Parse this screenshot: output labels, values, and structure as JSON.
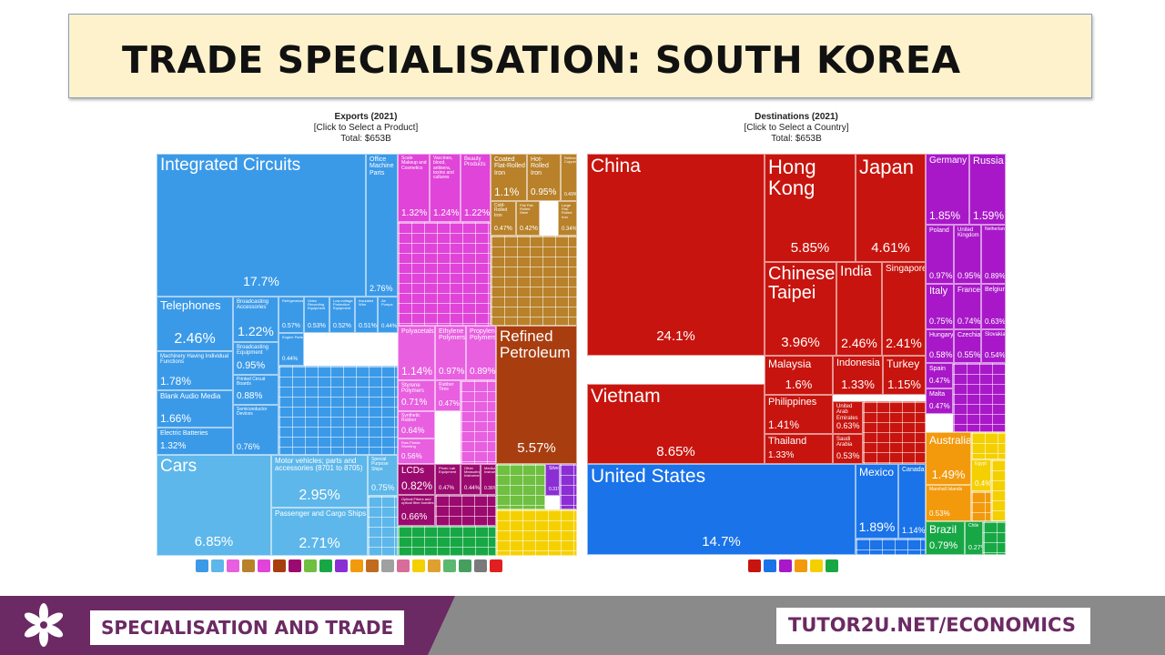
{
  "slide": {
    "title": "TRADE SPECIALISATION: SOUTH KOREA",
    "footer_left": "SPECIALISATION AND TRADE",
    "footer_right": "TUTOR2U.NET/ECONOMICS"
  },
  "chart_data": [
    {
      "type": "treemap",
      "title": "Exports (2021)",
      "subtitle": "[Click to Select a Product]",
      "total": "Total: $653B",
      "items": [
        {
          "name": "Integrated Circuits",
          "value": 17.7,
          "value_label": "17.7%",
          "color": "#3b9ae8"
        },
        {
          "name": "Office Machine Parts",
          "value": 2.76,
          "value_label": "2.76%",
          "color": "#3b9ae8"
        },
        {
          "name": "Telephones",
          "value": 2.46,
          "value_label": "2.46%",
          "color": "#3b9ae8"
        },
        {
          "name": "Broadcasting Accessories",
          "value": 1.22,
          "value_label": "1.22%",
          "color": "#3b9ae8"
        },
        {
          "name": "Machinery Having Individual Functions",
          "value": 1.78,
          "value_label": "1.78%",
          "color": "#3b9ae8"
        },
        {
          "name": "Broadcasting Equipment",
          "value": 0.95,
          "value_label": "0.95%",
          "color": "#3b9ae8"
        },
        {
          "name": "Blank Audio Media",
          "value": 1.66,
          "value_label": "1.66%",
          "color": "#3b9ae8"
        },
        {
          "name": "Printed Circuit Boards",
          "value": 0.88,
          "value_label": "0.88%",
          "color": "#3b9ae8"
        },
        {
          "name": "Electric Batteries",
          "value": 1.32,
          "value_label": "1.32%",
          "color": "#3b9ae8"
        },
        {
          "name": "Semiconductor Devices",
          "value": 0.76,
          "value_label": "0.76%",
          "color": "#3b9ae8"
        },
        {
          "name": "Refrigerators",
          "value": 0.57,
          "value_label": "0.57%",
          "color": "#3b9ae8"
        },
        {
          "name": "Video Recording Equipment",
          "value": 0.53,
          "value_label": "0.53%",
          "color": "#3b9ae8"
        },
        {
          "name": "Low-voltage Protection Equipment",
          "value": 0.52,
          "value_label": "0.52%",
          "color": "#3b9ae8"
        },
        {
          "name": "Insulated Wire",
          "value": 0.51,
          "value_label": "0.51%",
          "color": "#3b9ae8"
        },
        {
          "name": "Air Pumps",
          "value": 0.44,
          "value_label": "0.44%",
          "color": "#3b9ae8"
        },
        {
          "name": "Engine Parts",
          "value": 0.44,
          "value_label": "0.44%",
          "color": "#3b9ae8"
        },
        {
          "name": "Cars",
          "value": 6.85,
          "value_label": "6.85%",
          "color": "#5db7ea"
        },
        {
          "name": "Motor vehicles; parts and accessories (8701 to 8705)",
          "value": 2.95,
          "value_label": "2.95%",
          "color": "#5db7ea"
        },
        {
          "name": "Passenger and Cargo Ships",
          "value": 2.71,
          "value_label": "2.71%",
          "color": "#5db7ea"
        },
        {
          "name": "Special Purpose Ships",
          "value": 0.75,
          "value_label": "0.75%",
          "color": "#5db7ea"
        },
        {
          "name": "Coated Flat-Rolled Iron",
          "value": 1.1,
          "value_label": "1.1%",
          "color": "#b8812a"
        },
        {
          "name": "Hot-Rolled Iron",
          "value": 0.95,
          "value_label": "0.95%",
          "color": "#b8812a"
        },
        {
          "name": "Refined Copper",
          "value": 0.49,
          "value_label": "0.49%",
          "color": "#b8812a"
        },
        {
          "name": "Cold-Rolled Iron",
          "value": 0.47,
          "value_label": "0.47%",
          "color": "#b8812a"
        },
        {
          "name": "Flat Flat-Rolled Steel",
          "value": 0.42,
          "value_label": "0.42%",
          "color": "#b8812a"
        },
        {
          "name": "Large Flat-Rolled Iron",
          "value": 0.34,
          "value_label": "0.34%",
          "color": "#b8812a"
        },
        {
          "name": "Refined Petroleum",
          "value": 5.57,
          "value_label": "5.57%",
          "color": "#a83e10"
        },
        {
          "name": "Polyacetals",
          "value": 1.14,
          "value_label": "1.14%",
          "color": "#e85fe0"
        },
        {
          "name": "Ethylene Polymers",
          "value": 0.97,
          "value_label": "0.97%",
          "color": "#e85fe0"
        },
        {
          "name": "Propylene Polymers",
          "value": 0.89,
          "value_label": "0.89%",
          "color": "#e85fe0"
        },
        {
          "name": "Styrene Polymers",
          "value": 0.71,
          "value_label": "0.71%",
          "color": "#e85fe0"
        },
        {
          "name": "Rubber Tires",
          "value": 0.47,
          "value_label": "0.47%",
          "color": "#e85fe0"
        },
        {
          "name": "Synthetic Rubber",
          "value": 0.64,
          "value_label": "0.64%",
          "color": "#e85fe0"
        },
        {
          "name": "Raw Plastic Sheeting",
          "value": 0.56,
          "value_label": "0.56%",
          "color": "#e85fe0"
        },
        {
          "name": "Scale Makeup and Cosmetics",
          "value": 1.32,
          "value_label": "1.32%",
          "color": "#e044d8"
        },
        {
          "name": "Vaccines, blood, antisera, toxins and cultures",
          "value": 1.24,
          "value_label": "1.24%",
          "color": "#e044d8"
        },
        {
          "name": "Beauty Products",
          "value": 1.22,
          "value_label": "1.22%",
          "color": "#e044d8"
        },
        {
          "name": "LCDs",
          "value": 0.82,
          "value_label": "0.82%",
          "color": "#9b0a6e"
        },
        {
          "name": "Optical Fibers and optical fibre bundles",
          "value": 0.66,
          "value_label": "0.66%",
          "color": "#9b0a6e"
        },
        {
          "name": "Photo Lab Equipment",
          "value": 0.47,
          "value_label": "0.47%",
          "color": "#9b0a6e"
        },
        {
          "name": "Other Measuring Instruments",
          "value": 0.44,
          "value_label": "0.44%",
          "color": "#9b0a6e"
        },
        {
          "name": "Medical Instruments",
          "value": 0.36,
          "value_label": "0.36%",
          "color": "#9b0a6e"
        },
        {
          "name": "Silver",
          "value": 0.31,
          "value_label": "0.31%",
          "color": "#8b2fd4"
        }
      ]
    },
    {
      "type": "treemap",
      "title": "Destinations (2021)",
      "subtitle": "[Click to Select a Country]",
      "total": "Total: $653B",
      "items": [
        {
          "name": "China",
          "value": 24.1,
          "value_label": "24.1%",
          "color": "#c8140e"
        },
        {
          "name": "Vietnam",
          "value": 8.65,
          "value_label": "8.65%",
          "color": "#c8140e"
        },
        {
          "name": "Hong Kong",
          "value": 5.85,
          "value_label": "5.85%",
          "color": "#c8140e"
        },
        {
          "name": "Japan",
          "value": 4.61,
          "value_label": "4.61%",
          "color": "#c8140e"
        },
        {
          "name": "Chinese Taipei",
          "value": 3.96,
          "value_label": "3.96%",
          "color": "#c8140e"
        },
        {
          "name": "India",
          "value": 2.46,
          "value_label": "2.46%",
          "color": "#c8140e"
        },
        {
          "name": "Singapore",
          "value": 2.41,
          "value_label": "2.41%",
          "color": "#c8140e"
        },
        {
          "name": "Malaysia",
          "value": 1.6,
          "value_label": "1.6%",
          "color": "#c8140e"
        },
        {
          "name": "Indonesia",
          "value": 1.33,
          "value_label": "1.33%",
          "color": "#c8140e"
        },
        {
          "name": "Turkey",
          "value": 1.15,
          "value_label": "1.15%",
          "color": "#c8140e"
        },
        {
          "name": "Philippines",
          "value": 1.41,
          "value_label": "1.41%",
          "color": "#c8140e"
        },
        {
          "name": "United Arab Emirates",
          "value": 0.63,
          "value_label": "0.63%",
          "color": "#c8140e"
        },
        {
          "name": "Thailand",
          "value": 1.33,
          "value_label": "1.33%",
          "color": "#c8140e"
        },
        {
          "name": "Saudi Arabia",
          "value": 0.53,
          "value_label": "0.53%",
          "color": "#c8140e"
        },
        {
          "name": "United States",
          "value": 14.7,
          "value_label": "14.7%",
          "color": "#1a73e8"
        },
        {
          "name": "Mexico",
          "value": 1.89,
          "value_label": "1.89%",
          "color": "#1a73e8"
        },
        {
          "name": "Canada",
          "value": 1.14,
          "value_label": "1.14%",
          "color": "#1a73e8"
        },
        {
          "name": "Germany",
          "value": 1.85,
          "value_label": "1.85%",
          "color": "#a818c8"
        },
        {
          "name": "Russia",
          "value": 1.59,
          "value_label": "1.59%",
          "color": "#a818c8"
        },
        {
          "name": "Poland",
          "value": 0.97,
          "value_label": "0.97%",
          "color": "#a818c8"
        },
        {
          "name": "United Kingdom",
          "value": 0.95,
          "value_label": "0.95%",
          "color": "#a818c8"
        },
        {
          "name": "Netherlands",
          "value": 0.89,
          "value_label": "0.89%",
          "color": "#a818c8"
        },
        {
          "name": "Italy",
          "value": 0.75,
          "value_label": "0.75%",
          "color": "#a818c8"
        },
        {
          "name": "France",
          "value": 0.74,
          "value_label": "0.74%",
          "color": "#a818c8"
        },
        {
          "name": "Belgium",
          "value": 0.63,
          "value_label": "0.63%",
          "color": "#a818c8"
        },
        {
          "name": "Hungary",
          "value": 0.58,
          "value_label": "0.58%",
          "color": "#a818c8"
        },
        {
          "name": "Czechia",
          "value": 0.55,
          "value_label": "0.55%",
          "color": "#a818c8"
        },
        {
          "name": "Slovakia",
          "value": 0.54,
          "value_label": "0.54%",
          "color": "#a818c8"
        },
        {
          "name": "Spain",
          "value": 0.47,
          "value_label": "0.47%",
          "color": "#a818c8"
        },
        {
          "name": "Malta",
          "value": 0.47,
          "value_label": "0.47%",
          "color": "#a818c8"
        },
        {
          "name": "Australia",
          "value": 1.49,
          "value_label": "1.49%",
          "color": "#f29a0c"
        },
        {
          "name": "Marshall Islands",
          "value": 0.53,
          "value_label": "0.53%",
          "color": "#f29a0c"
        },
        {
          "name": "Egypt",
          "value": 0.4,
          "value_label": "0.4%",
          "color": "#f5d000"
        },
        {
          "name": "Brazil",
          "value": 0.79,
          "value_label": "0.79%",
          "color": "#17a845"
        },
        {
          "name": "Chile",
          "value": 0.27,
          "value_label": "0.27%",
          "color": "#17a845"
        }
      ]
    }
  ],
  "colors": {
    "title_bg": "#fdf2cc",
    "footer_purple": "#6b2a63",
    "footer_grey": "#8a8a8a"
  }
}
